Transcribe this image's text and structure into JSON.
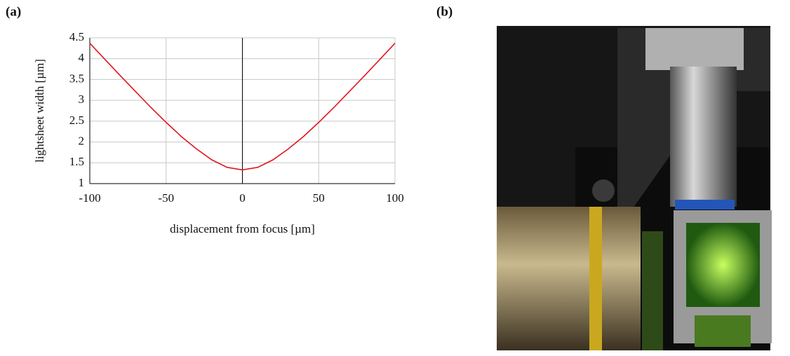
{
  "panel_labels": [
    "(a)",
    "(b)"
  ],
  "chart_data": {
    "type": "line",
    "x_label": "displacement from focus [µm]",
    "y_label": "lightsheet width [µm]",
    "x": [
      -100,
      -90,
      -80,
      -70,
      -60,
      -50,
      -40,
      -30,
      -20,
      -10,
      0,
      10,
      20,
      30,
      40,
      50,
      60,
      70,
      80,
      90,
      100
    ],
    "series": [
      {
        "color": "#e0161c",
        "values": [
          4.37,
          3.98,
          3.59,
          3.21,
          2.83,
          2.47,
          2.13,
          1.83,
          1.57,
          1.39,
          1.33,
          1.39,
          1.57,
          1.83,
          2.13,
          2.47,
          2.83,
          3.21,
          3.59,
          3.98,
          4.37
        ]
      }
    ],
    "xlim": [
      -100,
      100
    ],
    "ylim": [
      1,
      4.5
    ],
    "xticks": [
      -100,
      -50,
      0,
      50,
      100
    ],
    "yticks": [
      1,
      1.5,
      2,
      2.5,
      3,
      3.5,
      4,
      4.5
    ],
    "grid": true
  }
}
